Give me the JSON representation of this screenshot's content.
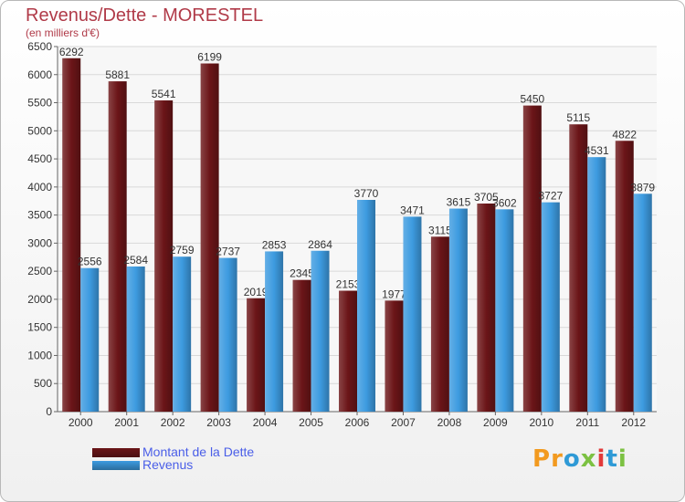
{
  "chart_data": {
    "type": "bar",
    "title": "Revenus/Dette - MORESTEL",
    "subtitle": "(en milliers d'€)",
    "categories": [
      "2000",
      "2001",
      "2002",
      "2003",
      "2004",
      "2005",
      "2006",
      "2007",
      "2008",
      "2009",
      "2010",
      "2011",
      "2012"
    ],
    "series": [
      {
        "name": "Montant de la Dette",
        "color": "#6b1518",
        "values": [
          6292,
          5881,
          5541,
          6199,
          2019,
          2345,
          2153,
          1977,
          3115,
          3705,
          5450,
          5115,
          4822
        ]
      },
      {
        "name": "Revenus",
        "color": "#3d9be0",
        "values": [
          2556,
          2584,
          2759,
          2737,
          2853,
          2864,
          3770,
          3471,
          3615,
          3602,
          3727,
          4531,
          3879
        ]
      }
    ],
    "ylim": [
      0,
      6500
    ],
    "yticks": [
      0,
      500,
      1000,
      1500,
      2000,
      2500,
      3000,
      3500,
      4000,
      4500,
      5000,
      5500,
      6000,
      6500
    ],
    "grid": true,
    "legend_position": "bottom-left"
  },
  "logo": {
    "letters": [
      "P",
      "r",
      "o",
      "x",
      "i",
      "t",
      "i"
    ],
    "colors": [
      "#f29a1f",
      "#f29a1f",
      "#2f9ad6",
      "#7cc142",
      "#e23a3a",
      "#2f9ad6",
      "#7cc142"
    ]
  }
}
